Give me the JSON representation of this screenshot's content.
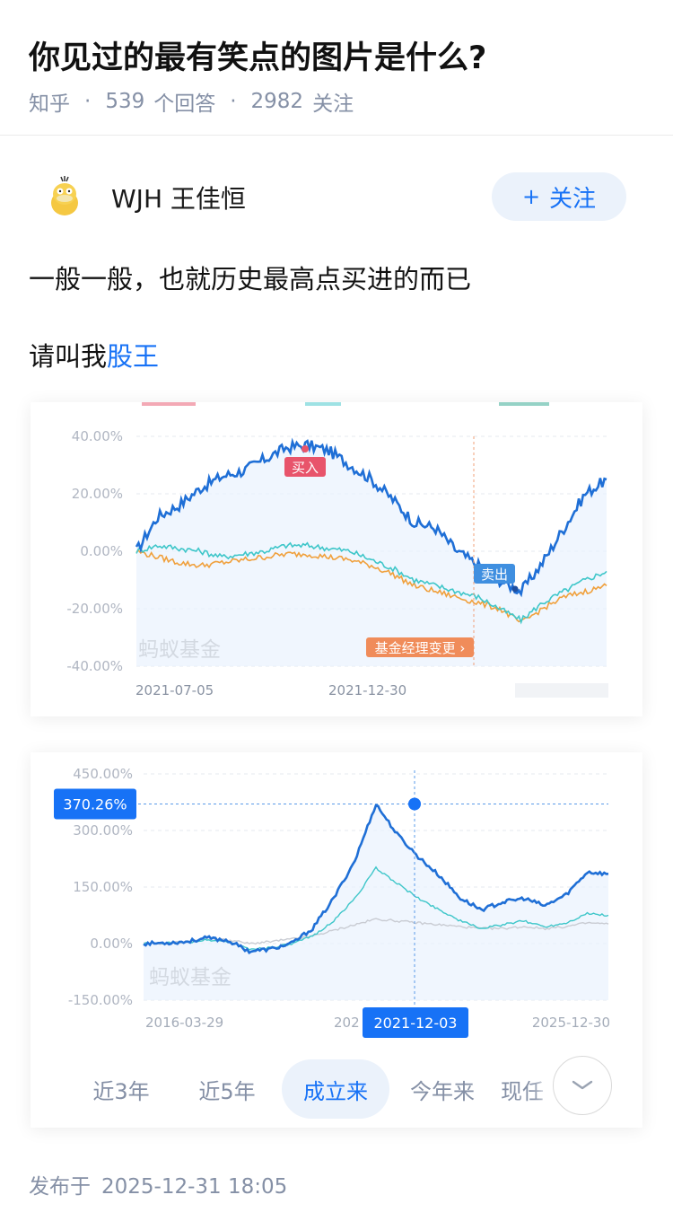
{
  "question": {
    "title": "你见过的最有笑点的图片是什么?",
    "source": "知乎",
    "answers_count": "539",
    "answers_label": "个回答",
    "followers_count": "2982",
    "followers_label": "关注"
  },
  "answer": {
    "author": "WJH 王佳恒",
    "follow_label": "关注",
    "line1": "一般一般，也就历史最高点买进的而已",
    "line2_prefix": "请叫我",
    "line2_link": "股王",
    "published_label": "发布于",
    "published_time": "2025-12-31 18:05"
  },
  "colors": {
    "accent": "#1772f6",
    "fund_line": "#1f6fd6",
    "benchmark_line": "#3ec6c9",
    "index_line": "#f0a03c",
    "buy_tag": "#e8546b",
    "manager_tag": "#f08c5a"
  },
  "icons": {
    "follow": "plus-icon",
    "expand": "chevron-down-icon",
    "avatar": "psyduck-avatar"
  },
  "chart_data": [
    {
      "type": "line",
      "watermark": "蚂蚁基金",
      "yticks": [
        "40.00%",
        "20.00%",
        "0.00%",
        "-20.00%",
        "-40.00%"
      ],
      "ylim": [
        -40,
        40
      ],
      "xticks": [
        "2021-07-05",
        "2021-12-30"
      ],
      "annotations": {
        "buy": "买入",
        "sell": "卖出",
        "manager_change": "基金经理变更 ›"
      },
      "series": [
        {
          "values": [
            0,
            12,
            16,
            22,
            26,
            28,
            32,
            36,
            37,
            35,
            30,
            25,
            18,
            10,
            8,
            0,
            -5,
            -10,
            -14,
            -4,
            8,
            20,
            25
          ]
        },
        {
          "values": [
            0,
            2,
            1,
            0,
            -2,
            -1,
            0,
            2,
            2,
            1,
            0,
            -3,
            -6,
            -10,
            -12,
            -14,
            -16,
            -20,
            -24,
            -18,
            -14,
            -10,
            -7
          ]
        },
        {
          "values": [
            0,
            -2,
            -4,
            -5,
            -4,
            -3,
            -2,
            -1,
            -1,
            -2,
            -3,
            -5,
            -8,
            -12,
            -14,
            -16,
            -18,
            -20,
            -25,
            -20,
            -16,
            -14,
            -12
          ]
        }
      ]
    },
    {
      "type": "line",
      "watermark": "蚂蚁基金",
      "yticks": [
        "450.00%",
        "300.00%",
        "150.00%",
        "0.00%",
        "-150.00%"
      ],
      "ylim": [
        -150,
        450
      ],
      "xticks": [
        "2016-03-29",
        "2021-12-03",
        "2025-12-30"
      ],
      "highlight": {
        "value_label": "370.26%",
        "date_label": "2021-12-03"
      },
      "range_tabs": [
        "近3年",
        "近5年",
        "成立来",
        "今年来",
        "现任"
      ],
      "active_tab": "成立来",
      "series": [
        {
          "values": [
            0,
            2,
            5,
            15,
            8,
            -20,
            -15,
            0,
            40,
            120,
            220,
            370,
            290,
            230,
            180,
            120,
            90,
            110,
            120,
            100,
            130,
            190,
            185
          ]
        },
        {
          "values": [
            0,
            1,
            3,
            10,
            5,
            -15,
            -10,
            -2,
            20,
            60,
            120,
            200,
            160,
            120,
            90,
            60,
            40,
            50,
            60,
            45,
            55,
            80,
            75
          ]
        },
        {
          "values": [
            0,
            1,
            5,
            12,
            10,
            0,
            5,
            12,
            20,
            35,
            50,
            65,
            60,
            55,
            50,
            45,
            40,
            40,
            45,
            40,
            45,
            55,
            52
          ]
        }
      ]
    }
  ]
}
